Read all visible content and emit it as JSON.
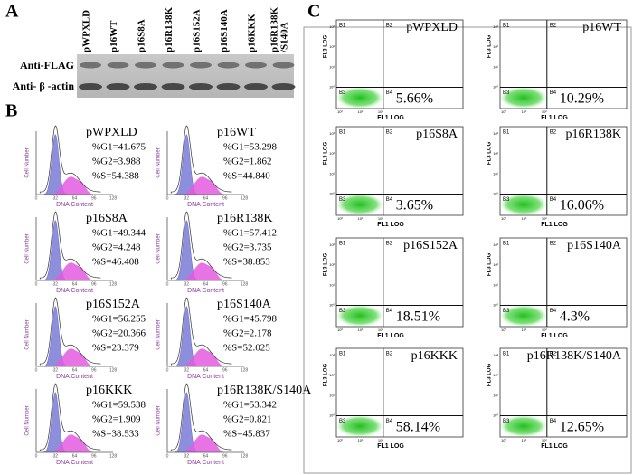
{
  "panel_a": {
    "label": "A",
    "lanes": [
      [
        "pWPXLD"
      ],
      [
        "p16WT"
      ],
      [
        "p16S8A"
      ],
      [
        "p16R138K"
      ],
      [
        "p16S152A"
      ],
      [
        "p16S140A"
      ],
      [
        "p16KKK"
      ],
      [
        "p16R138K",
        "/S140A"
      ]
    ],
    "rows": [
      "Anti-FLAG",
      "Anti- β -actin"
    ]
  },
  "panel_b": {
    "label": "B",
    "x_axis_label": "DNA Content",
    "y_axis_label": "Cell Number",
    "x_ticks": [
      "0",
      "32",
      "64",
      "96",
      "128"
    ],
    "plots": [
      {
        "name": "pWPXLD",
        "g1": "%G1=41.675",
        "g2": "%G2=3.988",
        "s": "%S=54.388"
      },
      {
        "name": "p16WT",
        "g1": "%G1=53.298",
        "g2": "%G2=1.862",
        "s": "%S=44.840"
      },
      {
        "name": "p16S8A",
        "g1": "%G1=49.344",
        "g2": "%G2=4.248",
        "s": "%S=46.408"
      },
      {
        "name": "p16R138K",
        "g1": "%G1=57.412",
        "g2": "%G2=3.735",
        "s": "%S=38.853"
      },
      {
        "name": "p16S152A",
        "g1": "%G1=56.255",
        "g2": "%G2=20.366",
        "s": "%S=23.379"
      },
      {
        "name": "p16S140A",
        "g1": "%G1=45.798",
        "g2": "%G2=2.178",
        "s": "%S=52.025"
      },
      {
        "name": "p16KKK",
        "g1": "%G1=59.538",
        "g2": "%G2=1.909",
        "s": "%S=38.533"
      },
      {
        "name": "p16R138K/S140A",
        "g1": "%G1=53.342",
        "g2": "%G2=0.821",
        "s": "%S=45.837"
      }
    ]
  },
  "panel_c": {
    "label": "C",
    "x_axis_label": "FL1 LOG",
    "y_axis_label": "FL3 LOG",
    "quadrants": [
      "B1",
      "B2",
      "B3",
      "B4"
    ],
    "y_ticks": [
      "10³",
      "10²",
      "10¹",
      "10⁰"
    ],
    "x_ticks": [
      "10⁰",
      "10¹",
      "10²"
    ],
    "plots": [
      {
        "name": "pWPXLD",
        "percent": "5.66%"
      },
      {
        "name": "p16WT",
        "percent": "10.29%"
      },
      {
        "name": "p16S8A",
        "percent": "3.65%"
      },
      {
        "name": "p16R138K",
        "percent": "16.06%"
      },
      {
        "name": "p16S152A",
        "percent": "18.51%"
      },
      {
        "name": "p16S140A",
        "percent": "4.3%"
      },
      {
        "name": "p16KKK",
        "percent": "58.14%"
      },
      {
        "name": "p16R138K/S140A",
        "percent": "12.65%"
      }
    ]
  }
}
